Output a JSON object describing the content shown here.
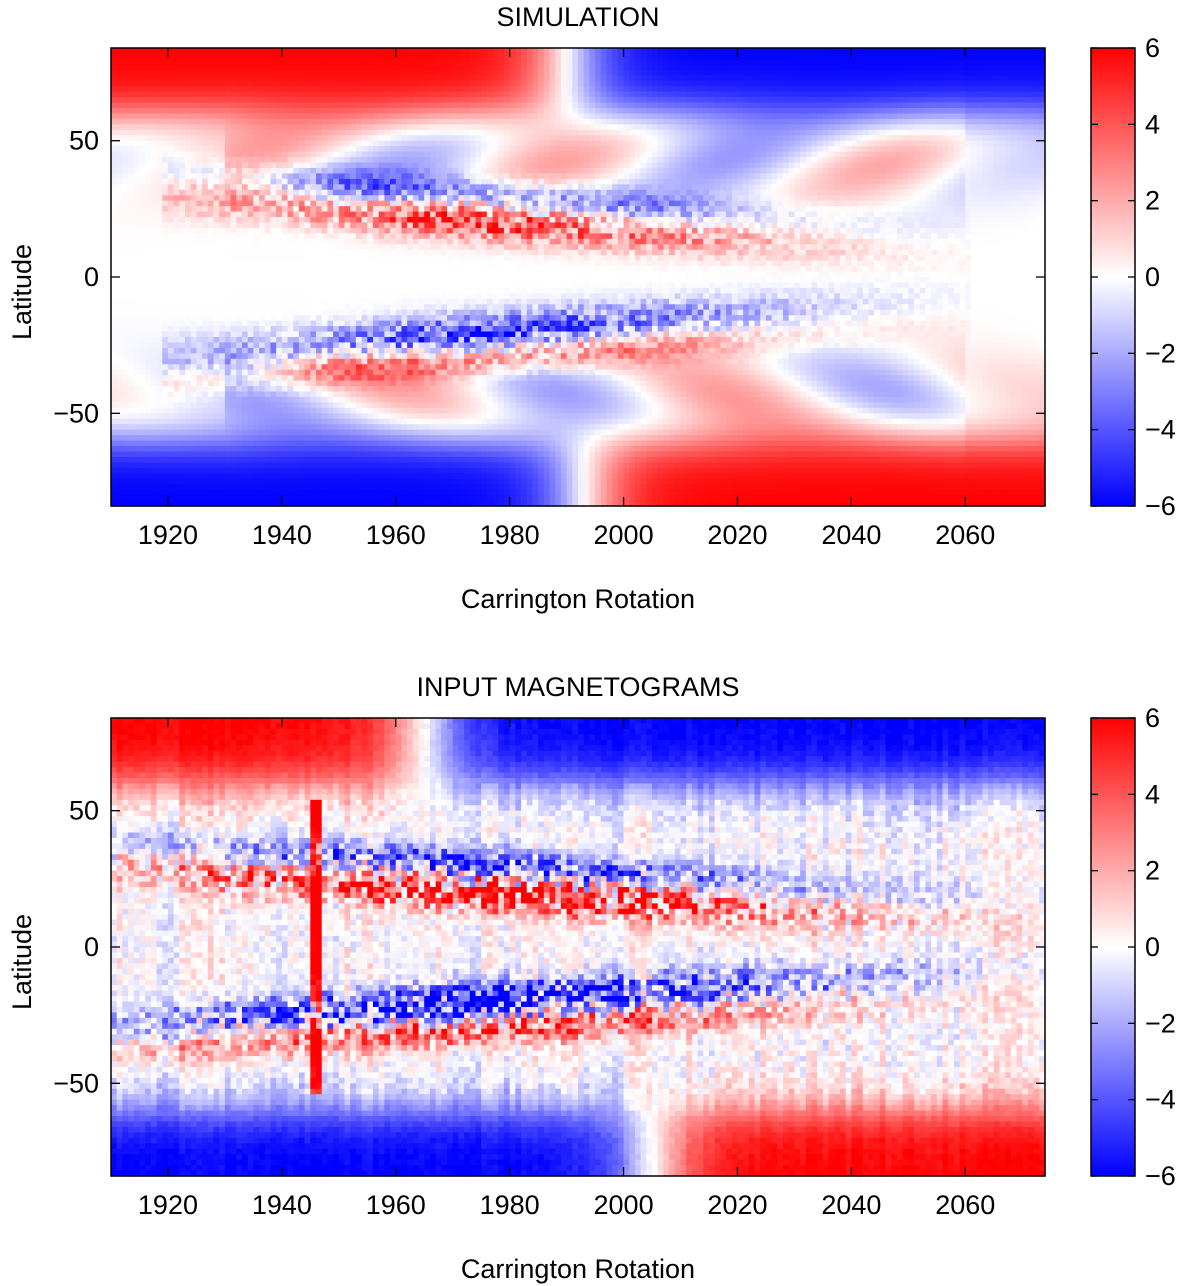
{
  "chart_data": [
    {
      "type": "heatmap",
      "title": "SIMULATION",
      "xlabel": "Carrington Rotation",
      "ylabel": "Latitude",
      "xlim": [
        1910,
        2074
      ],
      "ylim": [
        -84,
        84
      ],
      "xticks": [
        1920,
        1940,
        1960,
        1980,
        2000,
        2020,
        2040,
        2060
      ],
      "yticks": [
        50,
        0,
        -50
      ],
      "ytick_labels": [
        "50",
        "0",
        "−50"
      ],
      "colorbar": {
        "range": [
          -6,
          6
        ],
        "ticks": [
          6,
          4,
          2,
          0,
          -2,
          -4,
          -6
        ],
        "tick_labels": [
          "6",
          "4",
          "2",
          "0",
          "−2",
          "−4",
          "−6"
        ],
        "colors": {
          "low": "#0000ff",
          "mid": "#ffffff",
          "high": "#ff0000"
        }
      },
      "features": {
        "north_polar_flip_rotation": 1990,
        "south_polar_flip_rotation": 1993,
        "polar_field_before": {
          "north": 6,
          "south": -6
        },
        "polar_field_after": {
          "north": -6,
          "south": 6
        },
        "active_band_start_rotation": 1925,
        "active_band_end_rotation": 2055,
        "north_active_latitude": 20,
        "south_active_latitude": -20
      }
    },
    {
      "type": "heatmap",
      "title": "INPUT MAGNETOGRAMS",
      "xlabel": "Carrington Rotation",
      "ylabel": "Latitude",
      "xlim": [
        1910,
        2074
      ],
      "ylim": [
        -84,
        84
      ],
      "xticks": [
        1920,
        1940,
        1960,
        1980,
        2000,
        2020,
        2040,
        2060
      ],
      "yticks": [
        50,
        0,
        -50
      ],
      "ytick_labels": [
        "50",
        "0",
        "−50"
      ],
      "colorbar": {
        "range": [
          -6,
          6
        ],
        "ticks": [
          6,
          4,
          2,
          0,
          -2,
          -4,
          -6
        ],
        "tick_labels": [
          "6",
          "4",
          "2",
          "0",
          "−2",
          "−4",
          "−6"
        ],
        "colors": {
          "low": "#0000ff",
          "mid": "#ffffff",
          "high": "#ff0000"
        }
      },
      "features": {
        "north_polar_flip_rotation": 1965,
        "south_polar_flip_rotation": 2005,
        "polar_field_before": {
          "north": 6,
          "south": -6
        },
        "polar_field_after": {
          "north": -6,
          "south": 6
        },
        "active_band_start_rotation": 1915,
        "active_band_end_rotation": 2070,
        "north_active_latitude": 20,
        "south_active_latitude": -20,
        "strong_spike_rotation": 1946
      }
    }
  ]
}
